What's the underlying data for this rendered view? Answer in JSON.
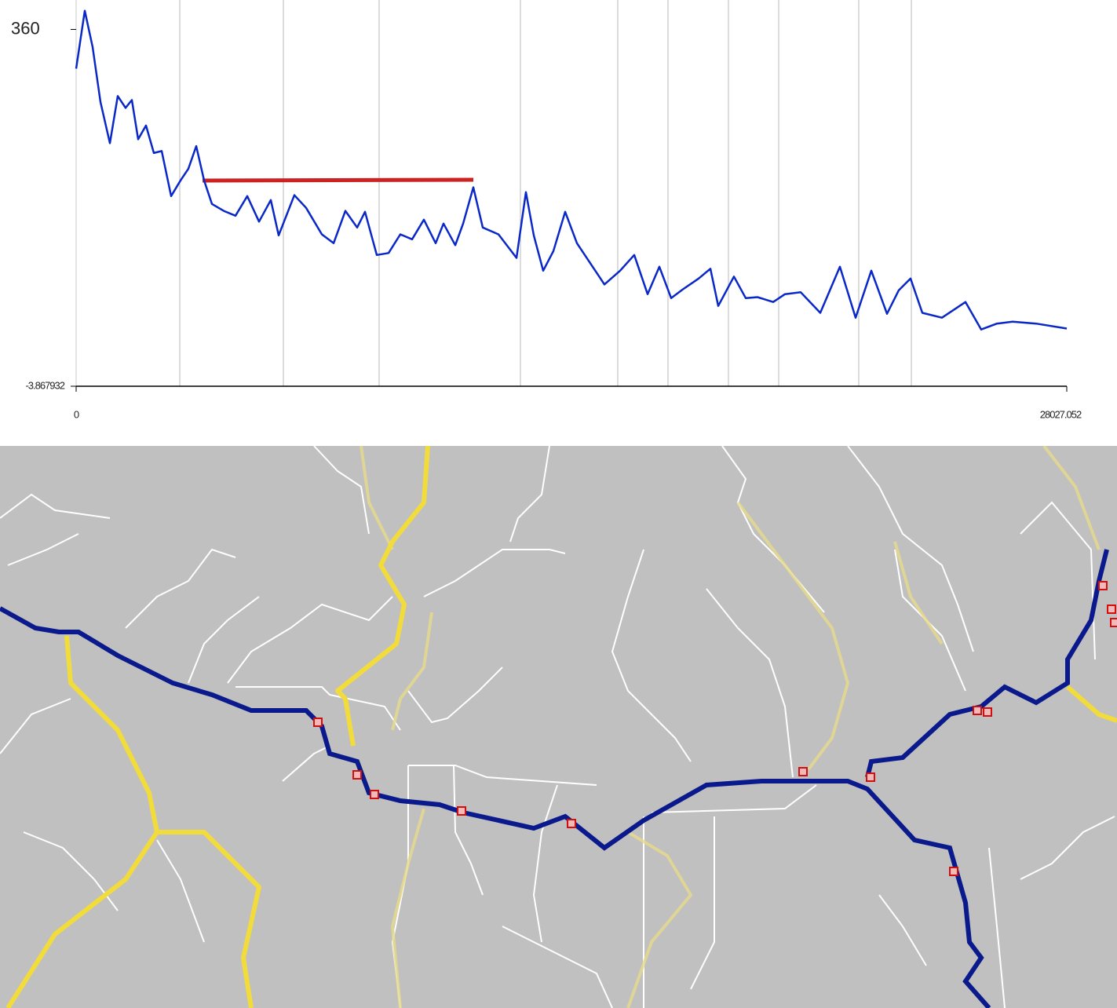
{
  "chart_data": {
    "type": "line",
    "x": [
      0,
      244,
      466,
      688,
      955,
      1177,
      1399,
      1577,
      1754,
      1977,
      2199,
      2421,
      2687,
      2954,
      3176,
      3398,
      3620,
      3842,
      4175,
      4508,
      4842,
      5175,
      5508,
      5730,
      6174,
      6508,
      6952,
      7284,
      7617,
      7951,
      8173,
      8506,
      8839,
      9172,
      9505,
      9839,
      10172,
      10394,
      10727,
      10949,
      11238,
      11505,
      11949,
      12459,
      12726,
      12948,
      13214,
      13503,
      13836,
      14169,
      14613,
      14947,
      15391,
      15791,
      16168,
      16501,
      16834,
      17168,
      17612,
      17945,
      18167,
      18611,
      18944,
      19277,
      19722,
      20055,
      20499,
      21054,
      21609,
      22053,
      22497,
      22941,
      23274,
      23607,
      23941,
      24496,
      25162,
      25606,
      26050,
      26495,
      27161,
      28027.052
    ],
    "series": [
      {
        "color": "#0a28c8",
        "values": [
          320,
          379,
          342,
          286,
          244,
          292,
          280,
          288,
          248,
          262,
          234,
          236,
          190,
          206,
          218,
          241,
          206,
          182,
          175,
          170,
          190,
          164,
          186,
          150,
          191,
          178,
          151,
          142,
          175,
          158,
          174,
          130,
          132,
          151,
          146,
          166,
          142,
          162,
          140,
          162,
          199,
          158,
          151,
          127,
          194,
          150,
          114,
          134,
          174,
          142,
          118,
          100,
          114,
          130,
          90,
          118,
          86,
          95,
          106,
          116,
          78,
          108,
          86,
          87,
          82,
          90,
          92,
          71,
          118,
          66,
          114,
          70,
          94,
          106,
          71,
          66,
          82,
          54,
          60,
          62,
          60,
          55
        ]
      }
    ],
    "xlim": [
      0,
      28027.052
    ],
    "ylim": [
      -3.867932,
      390
    ],
    "xticks": [
      0,
      28027.052
    ],
    "yticks": [
      360,
      -3.867932
    ]
  }
}
